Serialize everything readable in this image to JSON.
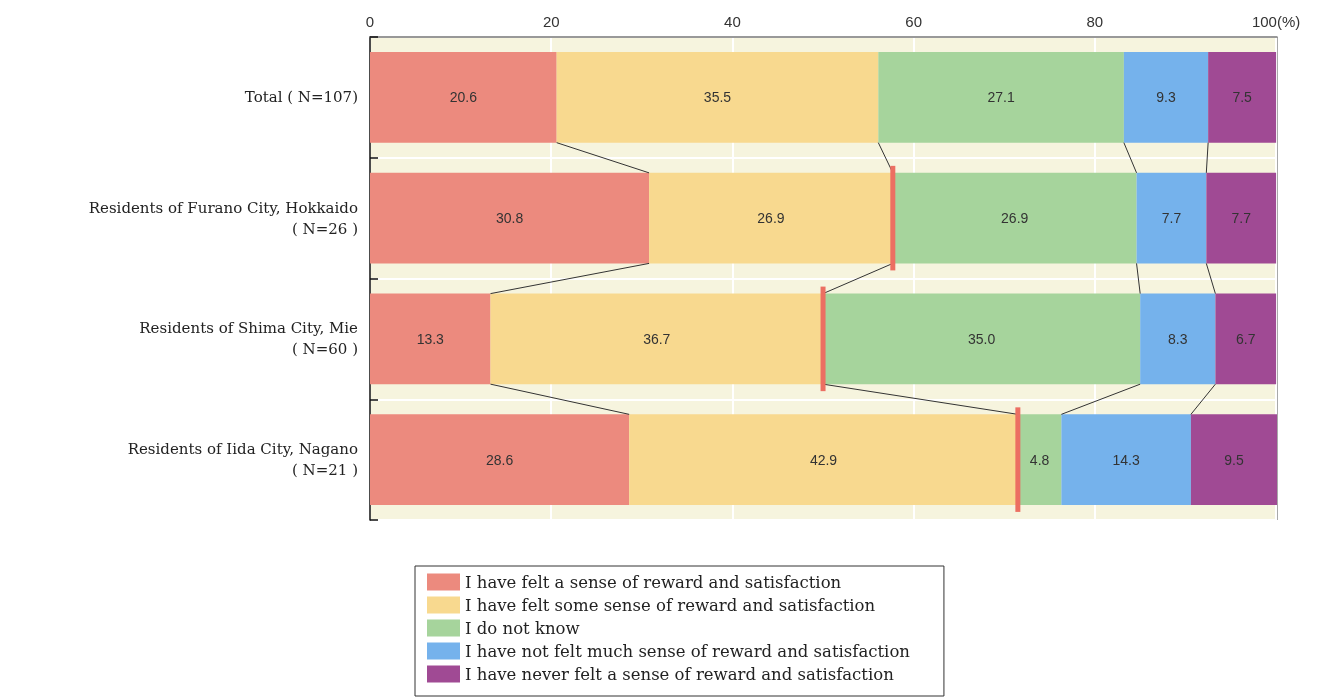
{
  "chart_data": {
    "type": "bar",
    "orientation": "horizontal",
    "stacked": true,
    "categories": [
      "Total ( N=107)",
      "Residents of Furano City, Hokkaido\n( N=26 )",
      "Residents of Shima City, Mie\n( N=60 )",
      "Residents of Iida City, Nagano\n( N=21 )"
    ],
    "series": [
      {
        "name": "I have felt a sense of reward and satisfaction",
        "color": "#ec8a7e",
        "values": [
          20.6,
          30.8,
          13.3,
          28.6
        ],
        "value_labels": [
          "20.6",
          "30.8",
          "13.3",
          "28.6"
        ]
      },
      {
        "name": "I have felt some sense of reward and satisfaction",
        "color": "#f8d98f",
        "values": [
          35.5,
          26.9,
          36.7,
          42.9
        ],
        "value_labels": [
          "35.5",
          "26.9",
          "36.7",
          "42.9"
        ]
      },
      {
        "name": "I do not know",
        "color": "#a6d49c",
        "values": [
          27.1,
          26.9,
          35.0,
          4.8
        ],
        "value_labels": [
          "27.1",
          "26.9",
          "35.0",
          "4.8"
        ]
      },
      {
        "name": "I have not felt much sense of reward and satisfaction",
        "color": "#75b2ec",
        "values": [
          9.3,
          7.7,
          8.3,
          14.3
        ],
        "value_labels": [
          "9.3",
          "7.7",
          "8.3",
          "14.3"
        ]
      },
      {
        "name": "I have never felt a sense of reward and satisfaction",
        "color": "#a04a94",
        "values": [
          7.5,
          7.7,
          6.7,
          9.5
        ],
        "value_labels": [
          "7.5",
          "7.7",
          "6.7",
          "9.5"
        ]
      }
    ],
    "xlim": [
      0,
      100.1
    ],
    "xticks": [
      0,
      20,
      40,
      60,
      80,
      {
        "value": 100,
        "label": "100(%)"
      }
    ],
    "grid": true,
    "legend": "bottom"
  }
}
